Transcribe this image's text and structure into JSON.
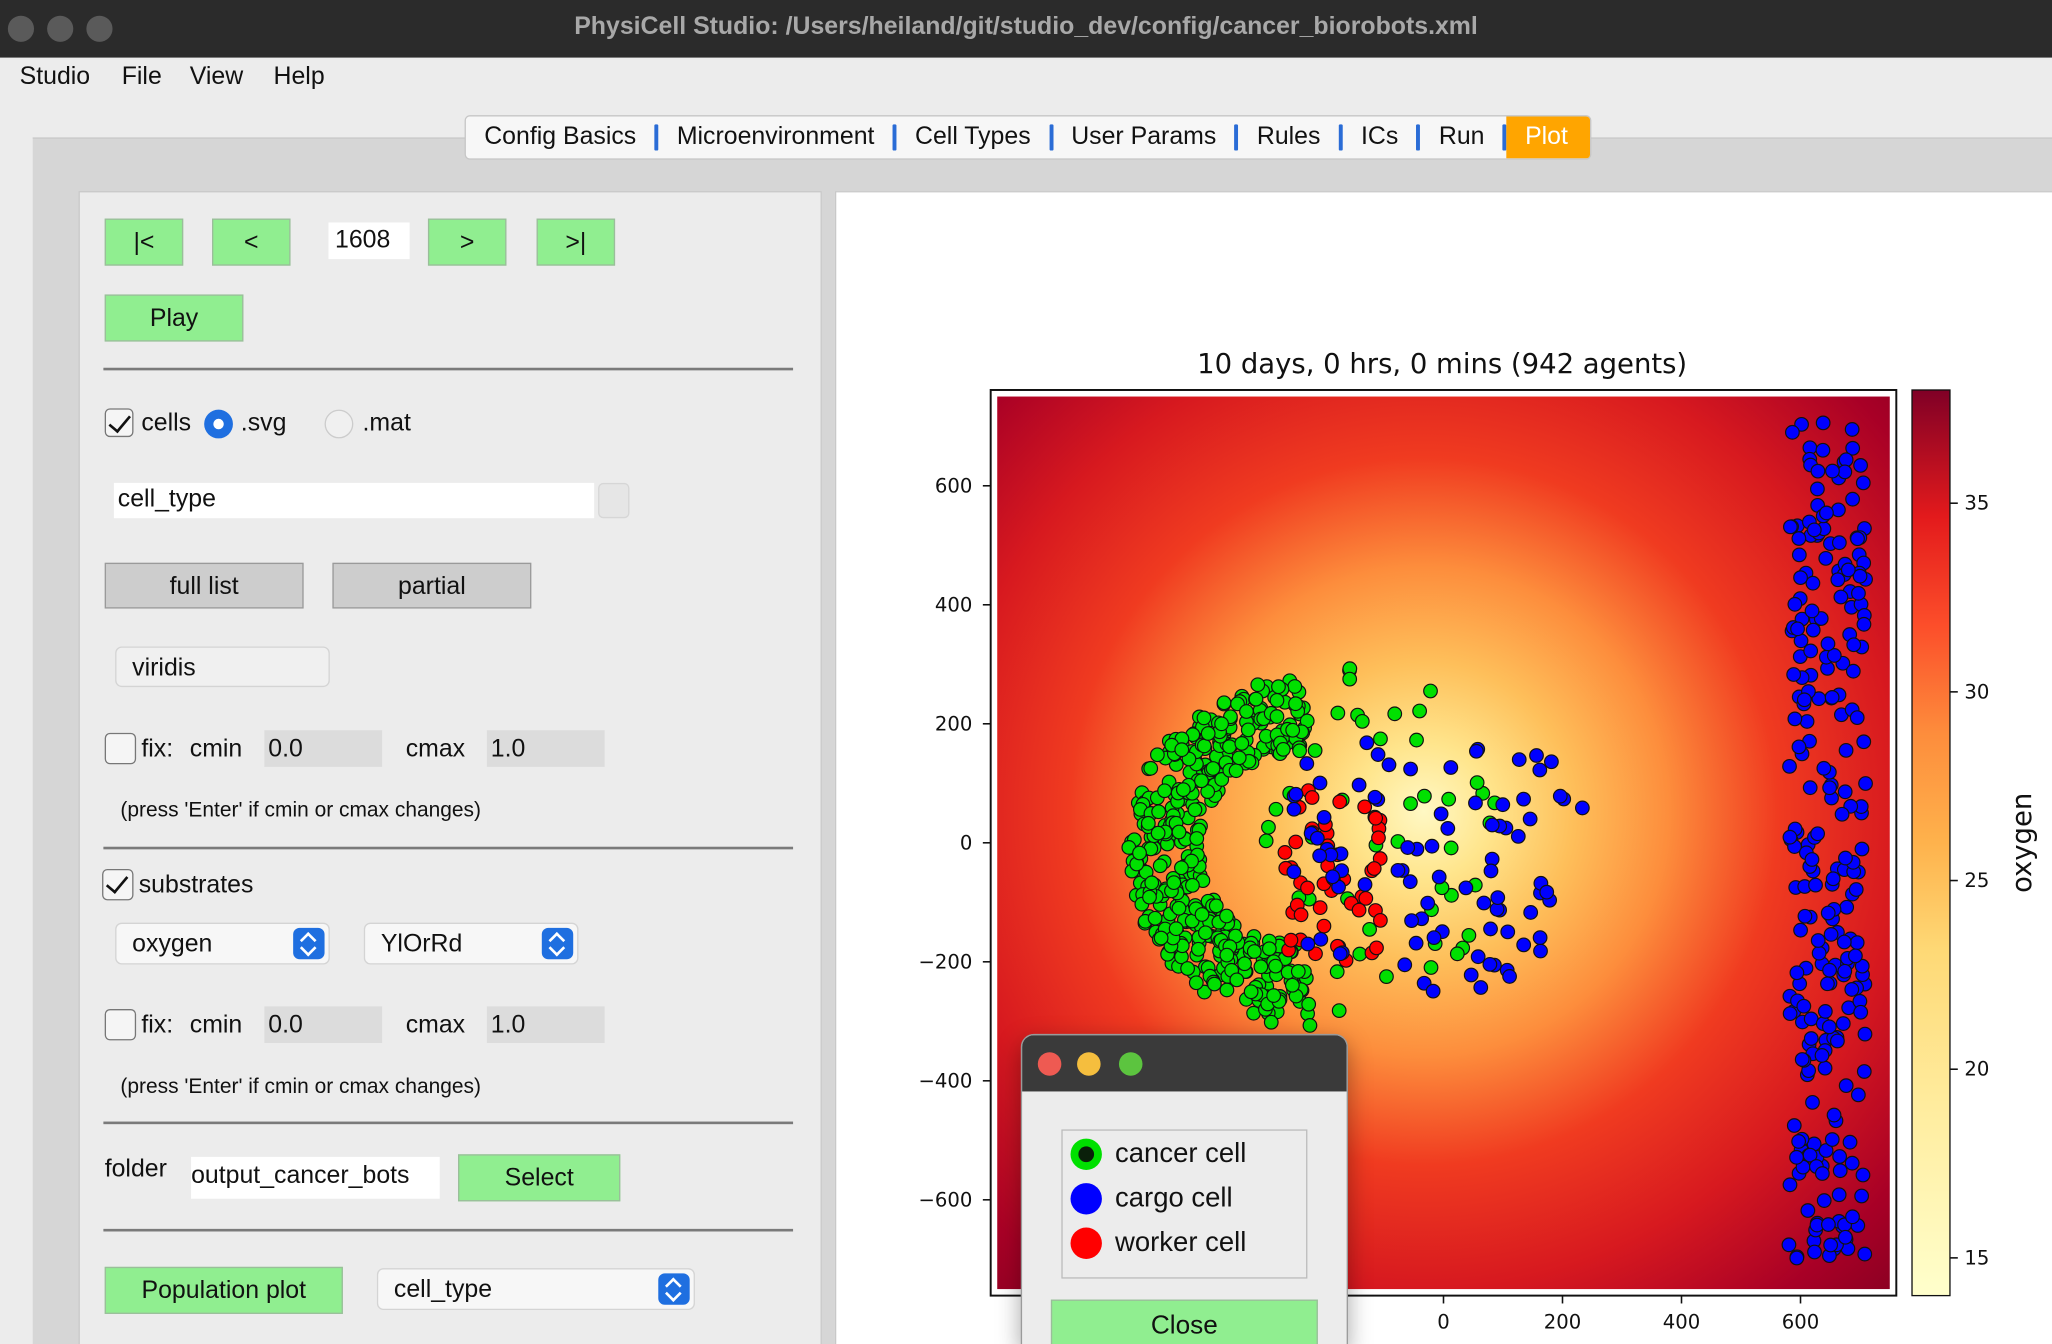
{
  "window": {
    "title": "PhysiCell Studio: /Users/heiland/git/studio_dev/config/cancer_biorobots.xml"
  },
  "menubar": [
    "Studio",
    "File",
    "View",
    "Help"
  ],
  "tabs": [
    {
      "label": "Config Basics",
      "active": false
    },
    {
      "label": "Microenvironment",
      "active": false
    },
    {
      "label": "Cell Types",
      "active": false
    },
    {
      "label": "User Params",
      "active": false
    },
    {
      "label": "Rules",
      "active": false
    },
    {
      "label": "ICs",
      "active": false
    },
    {
      "label": "Run",
      "active": false
    },
    {
      "label": "Plot",
      "active": true
    }
  ],
  "controls": {
    "first_label": "|<",
    "prev_label": "<",
    "frame_value": "1608",
    "next_label": ">",
    "last_label": ">|",
    "play_label": "Play",
    "cells_label": "cells",
    "cells_checked": true,
    "svg_label": ".svg",
    "svg_selected": true,
    "mat_label": ".mat",
    "mat_selected": false,
    "cell_scalar_value": "cell_type",
    "full_list_label": "full list",
    "partial_label": "partial",
    "cell_cmap_value": "viridis",
    "cells_fix_label": "fix:",
    "cells_fix_checked": false,
    "cells_cmin_label": "cmin",
    "cells_cmin_value": "0.0",
    "cells_cmax_label": "cmax",
    "cells_cmax_value": "1.0",
    "cells_note": "(press 'Enter' if cmin or cmax changes)",
    "substrates_label": "substrates",
    "substrates_checked": true,
    "substrate_value": "oxygen",
    "substrate_cmap_value": "YlOrRd",
    "sub_fix_label": "fix:",
    "sub_fix_checked": false,
    "sub_cmin_label": "cmin",
    "sub_cmin_value": "0.0",
    "sub_cmax_label": "cmax",
    "sub_cmax_value": "1.0",
    "sub_note": "(press 'Enter' if cmin or cmax changes)",
    "folder_label": "folder",
    "folder_value": "output_cancer_bots",
    "select_label": "Select",
    "population_plot_label": "Population plot",
    "population_value": "cell_type"
  },
  "colors": {
    "green_button": "#90ee90",
    "active_tab": "#ffa500",
    "select_blue": "#1f6fe0",
    "cancer_cell": "#00e000",
    "cargo_cell": "#0000ff",
    "worker_cell": "#ff0000"
  },
  "chart_data": {
    "type": "scatter",
    "title": "10 days, 0 hrs, 0 mins (942 agents)",
    "background_field": "oxygen",
    "colormap": "YlOrRd",
    "xlim": [
      -750,
      750
    ],
    "ylim": [
      -750,
      750
    ],
    "x_ticks": [
      0,
      200,
      400,
      600
    ],
    "y_ticks": [
      600,
      400,
      200,
      0,
      -200,
      -400,
      -600
    ],
    "colorbar": {
      "label": "oxygen",
      "range": [
        14,
        38
      ],
      "ticks": [
        15,
        20,
        25,
        30,
        35
      ]
    },
    "series": [
      {
        "name": "cancer cell",
        "color": "#00e000",
        "count_estimate": 560
      },
      {
        "name": "cargo cell",
        "color": "#0000ff",
        "count_estimate": 330
      },
      {
        "name": "worker cell",
        "color": "#ff0000",
        "count_estimate": 50
      }
    ]
  },
  "legend_popup": {
    "items": [
      {
        "label": "cancer cell",
        "color": "#00e000"
      },
      {
        "label": "cargo cell",
        "color": "#0000ff"
      },
      {
        "label": "worker cell",
        "color": "#ff0000"
      }
    ],
    "close_label": "Close"
  }
}
